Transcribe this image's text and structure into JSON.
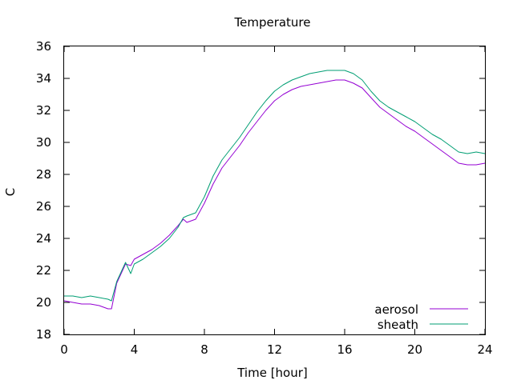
{
  "chart_data": {
    "type": "line",
    "title": "Temperature",
    "xlabel": "Time [hour]",
    "ylabel": "C",
    "xlim": [
      0,
      24
    ],
    "ylim": [
      18,
      36
    ],
    "xticks": [
      0,
      4,
      8,
      12,
      16,
      20,
      24
    ],
    "yticks": [
      18,
      20,
      22,
      24,
      26,
      28,
      30,
      32,
      34,
      36
    ],
    "grid": false,
    "legend_position": "bottom-right",
    "series": [
      {
        "name": "aerosol",
        "color": "#9400d3",
        "x": [
          0,
          0.5,
          1,
          1.5,
          2,
          2.5,
          2.7,
          3,
          3.5,
          3.8,
          4,
          4.5,
          5,
          5.5,
          6,
          6.5,
          6.8,
          7,
          7.5,
          8,
          8.5,
          9,
          9.5,
          10,
          10.5,
          11,
          11.5,
          12,
          12.5,
          13,
          13.5,
          14,
          14.5,
          15,
          15.5,
          16,
          16.5,
          17,
          17.5,
          18,
          18.5,
          19,
          19.5,
          20,
          20.5,
          21,
          21.5,
          22,
          22.5,
          23,
          23.5,
          24
        ],
        "y": [
          20.1,
          20.0,
          19.9,
          19.9,
          19.8,
          19.6,
          19.6,
          21.2,
          22.4,
          22.3,
          22.7,
          23.0,
          23.3,
          23.7,
          24.2,
          24.8,
          25.2,
          25.0,
          25.2,
          26.2,
          27.4,
          28.4,
          29.1,
          29.8,
          30.6,
          31.3,
          32.0,
          32.6,
          33.0,
          33.3,
          33.5,
          33.6,
          33.7,
          33.8,
          33.9,
          33.9,
          33.7,
          33.4,
          32.8,
          32.2,
          31.8,
          31.4,
          31.0,
          30.7,
          30.3,
          29.9,
          29.5,
          29.1,
          28.7,
          28.6,
          28.6,
          28.7
        ]
      },
      {
        "name": "sheath",
        "color": "#009e73",
        "x": [
          0,
          0.5,
          1,
          1.5,
          2,
          2.5,
          2.7,
          3,
          3.5,
          3.8,
          4,
          4.5,
          5,
          5.5,
          6,
          6.5,
          6.8,
          7,
          7.5,
          8,
          8.5,
          9,
          9.5,
          10,
          10.5,
          11,
          11.5,
          12,
          12.5,
          13,
          13.5,
          14,
          14.5,
          15,
          15.5,
          16,
          16.5,
          17,
          17.5,
          18,
          18.5,
          19,
          19.5,
          20,
          20.5,
          21,
          21.5,
          22,
          22.5,
          23,
          23.5,
          24
        ],
        "y": [
          20.4,
          20.4,
          20.3,
          20.4,
          20.3,
          20.2,
          20.1,
          21.3,
          22.5,
          21.8,
          22.4,
          22.7,
          23.1,
          23.5,
          24.0,
          24.7,
          25.3,
          25.4,
          25.6,
          26.6,
          27.9,
          28.9,
          29.6,
          30.3,
          31.1,
          31.9,
          32.6,
          33.2,
          33.6,
          33.9,
          34.1,
          34.3,
          34.4,
          34.5,
          34.5,
          34.5,
          34.3,
          33.9,
          33.2,
          32.6,
          32.2,
          31.9,
          31.6,
          31.3,
          30.9,
          30.5,
          30.2,
          29.8,
          29.4,
          29.3,
          29.4,
          29.3
        ]
      }
    ]
  }
}
